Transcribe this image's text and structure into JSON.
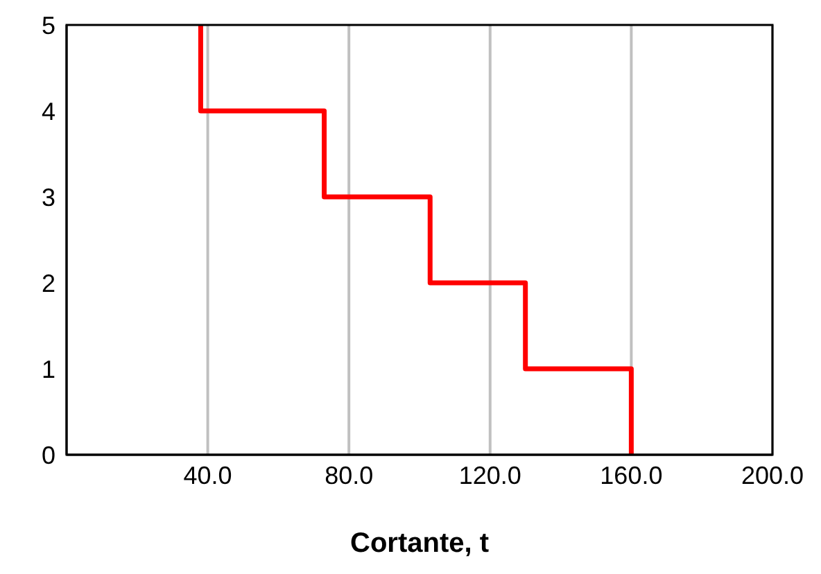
{
  "chart_data": {
    "type": "line",
    "xlabel": "Cortante, t",
    "x": [
      160,
      160,
      130,
      130,
      103,
      103,
      73,
      73,
      38,
      38
    ],
    "series": [
      {
        "color": "#ff0000",
        "values": [
          0,
          1,
          1,
          2,
          2,
          3,
          3,
          4,
          4,
          5
        ]
      }
    ],
    "xlim": [
      0,
      200
    ],
    "xticks": [
      {
        "value": 40,
        "label": "40.0"
      },
      {
        "value": 80,
        "label": "80.0"
      },
      {
        "value": 120,
        "label": "120.0"
      },
      {
        "value": 160,
        "label": "160.0"
      },
      {
        "value": 200,
        "label": "200.0"
      }
    ],
    "ylim": [
      0,
      5
    ],
    "yticks": [
      0,
      1,
      2,
      3,
      4,
      5
    ],
    "grid": "x",
    "marker": "none",
    "line_style": "solid"
  }
}
